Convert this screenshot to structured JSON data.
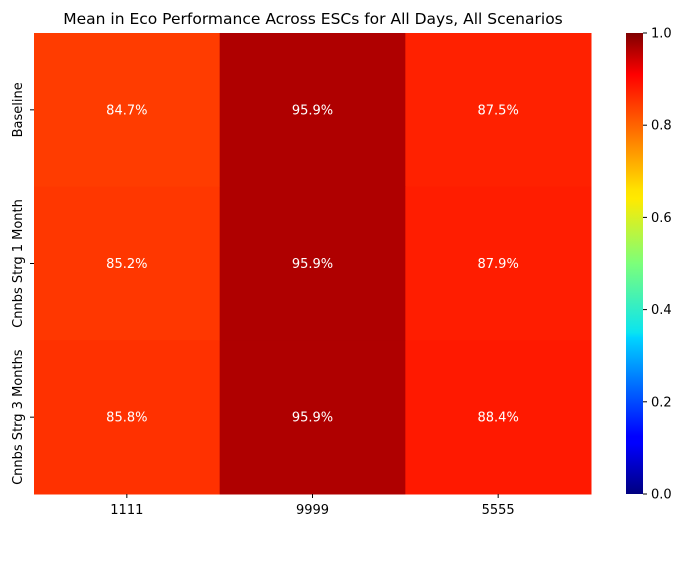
{
  "chart_data": {
    "type": "heatmap",
    "title": "Mean in Eco Performance Across ESCs for All Days, All Scenarios",
    "rows": [
      "Baseline",
      "Cnnbs Strg 1 Month",
      "Cnnbs Strg 3 Months"
    ],
    "columns": [
      "1111",
      "9999",
      "5555"
    ],
    "values": [
      [
        0.847,
        0.959,
        0.875
      ],
      [
        0.852,
        0.959,
        0.879
      ],
      [
        0.858,
        0.959,
        0.884
      ]
    ],
    "cell_labels": [
      [
        "84.7%",
        "95.9%",
        "87.5%"
      ],
      [
        "85.2%",
        "95.9%",
        "87.9%"
      ],
      [
        "85.8%",
        "95.9%",
        "88.4%"
      ]
    ],
    "colormap": "jet",
    "vmin": 0.0,
    "vmax": 1.0,
    "colorbar_ticks": [
      "0.0",
      "0.2",
      "0.4",
      "0.6",
      "0.8",
      "1.0"
    ],
    "colorbar_tick_values": [
      0.0,
      0.2,
      0.4,
      0.6,
      0.8,
      1.0
    ]
  }
}
